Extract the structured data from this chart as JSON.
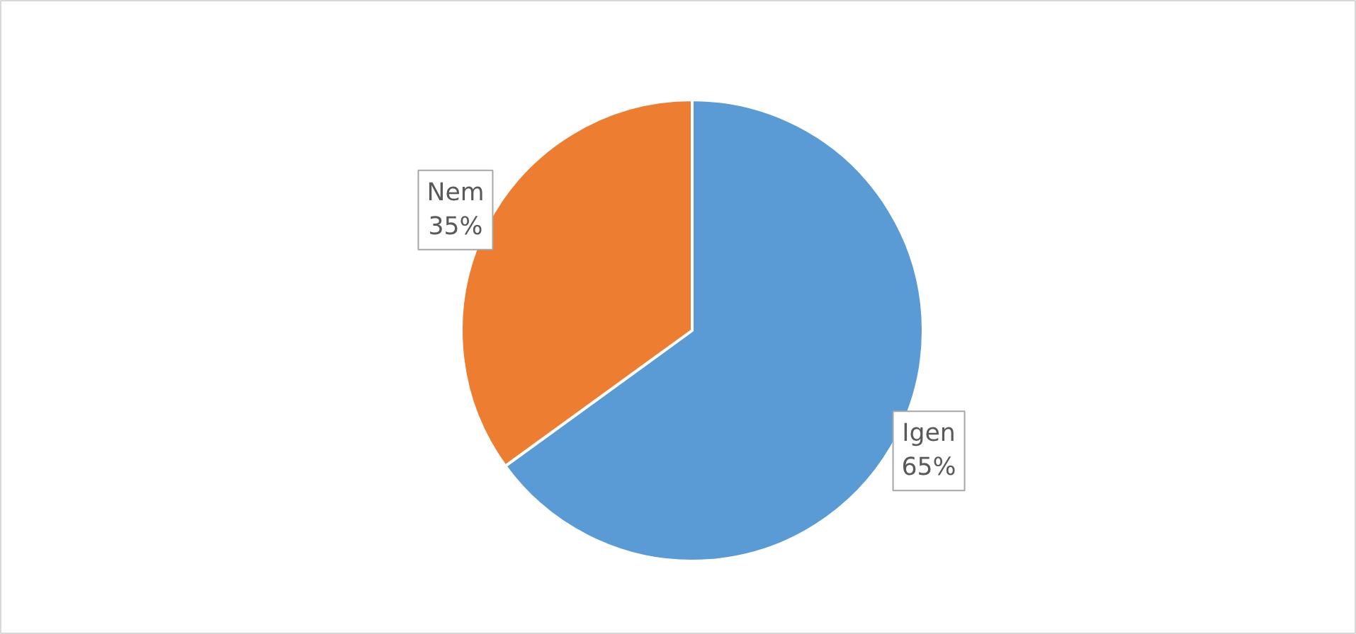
{
  "chart_data": {
    "type": "pie",
    "categories": [
      "Igen",
      "Nem"
    ],
    "values": [
      65,
      35
    ],
    "colors": [
      "#5b9bd5",
      "#ed7d31"
    ],
    "value_labels": [
      "65%",
      "35%"
    ]
  }
}
